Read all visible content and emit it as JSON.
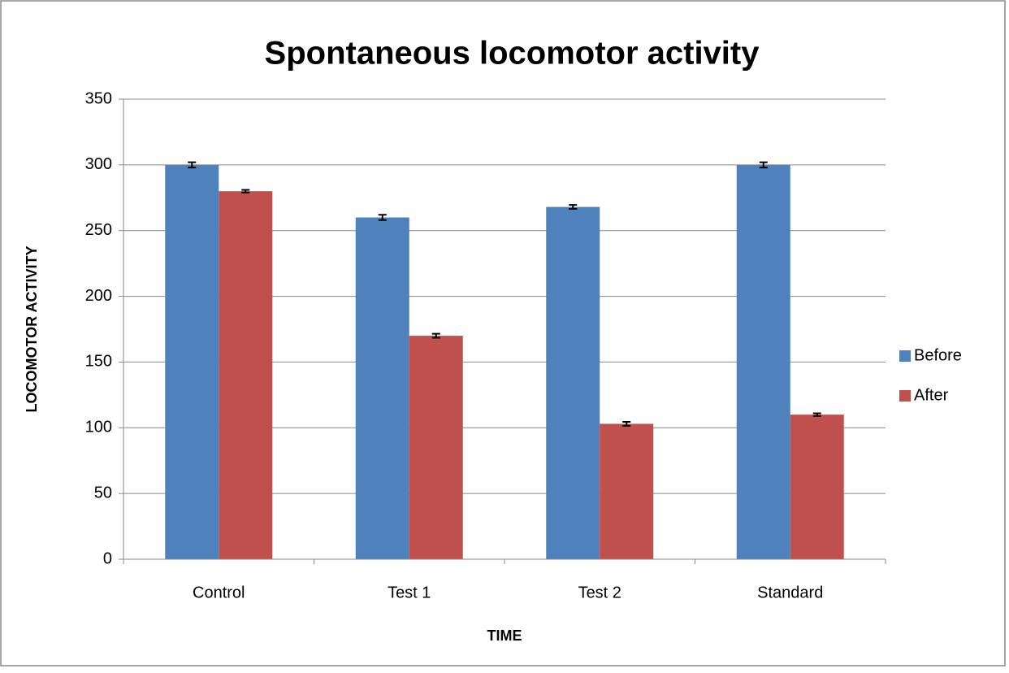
{
  "chart_data": {
    "type": "bar",
    "title": "Spontaneous locomotor activity",
    "x_label": "TIME",
    "y_label": "LOCOMOTOR ACTIVITY",
    "categories": [
      "Control",
      "Test 1",
      "Test 2",
      "Standard"
    ],
    "series": [
      {
        "name": "Before",
        "color": "#4f81bd",
        "values": [
          300,
          260,
          268,
          300
        ],
        "errors": [
          2,
          2,
          1.5,
          2
        ]
      },
      {
        "name": "After",
        "color": "#c0504d",
        "values": [
          280,
          170,
          103,
          110
        ],
        "errors": [
          1,
          1.5,
          1.5,
          1
        ]
      }
    ],
    "ylim": [
      0,
      350
    ],
    "yticks": [
      0,
      50,
      100,
      150,
      200,
      250,
      300,
      350
    ],
    "grid": true,
    "legend": "right"
  }
}
